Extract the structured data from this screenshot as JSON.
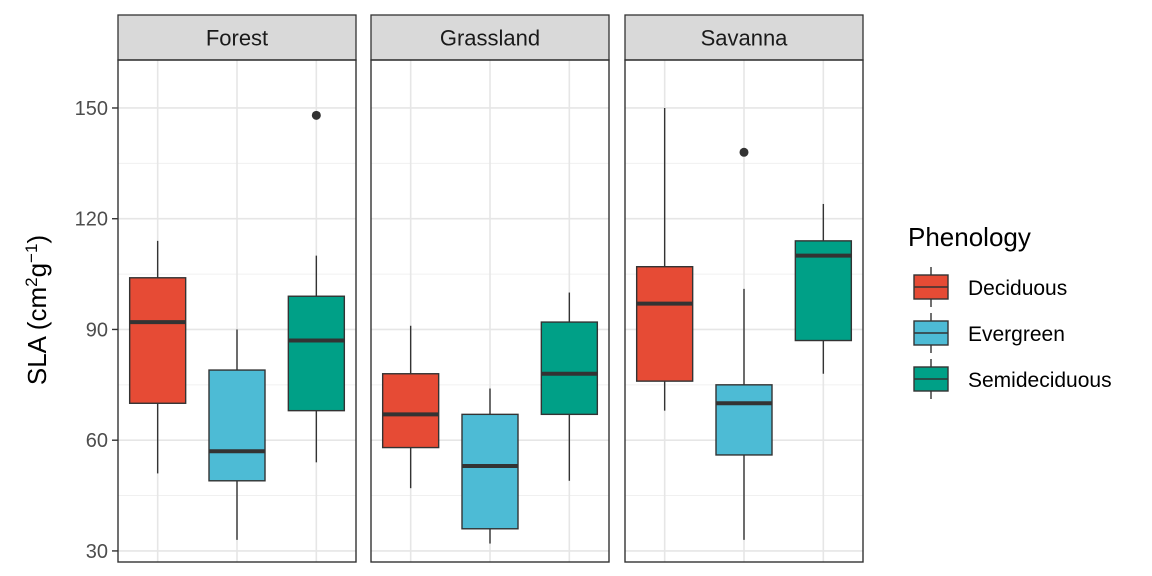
{
  "chart_data": {
    "type": "boxplot",
    "ylabel_main": "SLA (cm",
    "ylabel_sup1": "2",
    "ylabel_mid": "g",
    "ylabel_sup2": "−1",
    "ylabel_end": ")",
    "ylim": [
      27,
      163
    ],
    "yticks": [
      30,
      60,
      90,
      120,
      150
    ],
    "ytick_labels": [
      "30",
      "60",
      "90",
      "120",
      "150"
    ],
    "grid": true,
    "legend": {
      "title": "Phenology",
      "position": "right",
      "entries": [
        {
          "label": "Deciduous",
          "color": "#E64B35"
        },
        {
          "label": "Evergreen",
          "color": "#4DBBD5"
        },
        {
          "label": "Semideciduous",
          "color": "#00A087"
        }
      ]
    },
    "groups": [
      "Deciduous",
      "Evergreen",
      "Semideciduous"
    ],
    "panels": [
      {
        "facet": "Forest",
        "boxes": [
          {
            "group": "Deciduous",
            "low": 51,
            "q1": 70,
            "median": 92,
            "q3": 104,
            "high": 114,
            "outliers": []
          },
          {
            "group": "Evergreen",
            "low": 33,
            "q1": 49,
            "median": 57,
            "q3": 79,
            "high": 90,
            "outliers": []
          },
          {
            "group": "Semideciduous",
            "low": 54,
            "q1": 68,
            "median": 87,
            "q3": 99,
            "high": 110,
            "outliers": [
              148
            ]
          }
        ]
      },
      {
        "facet": "Grassland",
        "boxes": [
          {
            "group": "Deciduous",
            "low": 47,
            "q1": 58,
            "median": 67,
            "q3": 78,
            "high": 91,
            "outliers": []
          },
          {
            "group": "Evergreen",
            "low": 32,
            "q1": 36,
            "median": 53,
            "q3": 67,
            "high": 74,
            "outliers": []
          },
          {
            "group": "Semideciduous",
            "low": 49,
            "q1": 67,
            "median": 78,
            "q3": 92,
            "high": 100,
            "outliers": []
          }
        ]
      },
      {
        "facet": "Savanna",
        "boxes": [
          {
            "group": "Deciduous",
            "low": 68,
            "q1": 76,
            "median": 97,
            "q3": 107,
            "high": 150,
            "outliers": []
          },
          {
            "group": "Evergreen",
            "low": 33,
            "q1": 56,
            "median": 70,
            "q3": 75,
            "high": 101,
            "outliers": [
              138
            ]
          },
          {
            "group": "Semideciduous",
            "low": 78,
            "q1": 87,
            "median": 110,
            "q3": 114,
            "high": 124,
            "outliers": []
          }
        ]
      }
    ]
  }
}
